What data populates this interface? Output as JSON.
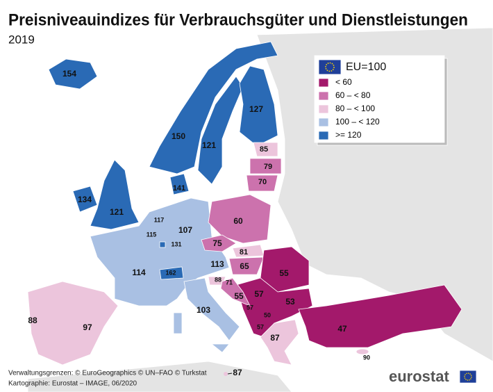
{
  "title": "Preisniveauindizes für Verbrauchsgüter und Dienstleistungen",
  "subtitle": "2019",
  "legend": {
    "title": "EU=100",
    "classes": [
      "< 60",
      "60 – < 80",
      "80 – < 100",
      "100 – < 120",
      ">= 120"
    ]
  },
  "map_labels": [
    154,
    127,
    150,
    121,
    85,
    79,
    70,
    141,
    134,
    121,
    117,
    107,
    60,
    115,
    131,
    75,
    81,
    114,
    113,
    65,
    55,
    162,
    88,
    71,
    55,
    57,
    53,
    57,
    50,
    57,
    103,
    87,
    47,
    88,
    97,
    90,
    87
  ],
  "footer": {
    "line1": "Verwaltungsgrenzen: © EuroGeographics © UN–FAO © Turkstat",
    "line2": "Kartographie: Eurostat – IMAGE, 06/2020",
    "logo": "eurostat"
  }
}
